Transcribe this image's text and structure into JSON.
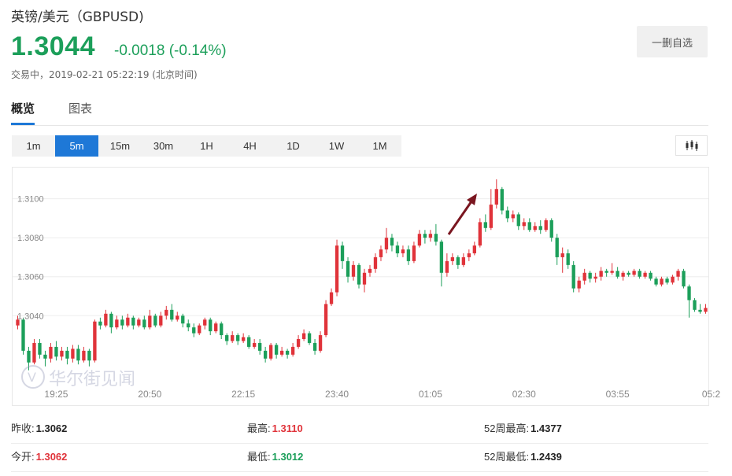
{
  "header": {
    "title": "英镑/美元（GBPUSD)",
    "price": "1.3044",
    "change": "-0.0018 (-0.14%)",
    "timestamp": "交易中，2019-02-21 05:22:19 (北京时间)",
    "watch_button": "一删自选"
  },
  "tabs": [
    {
      "label": "概览",
      "active": true
    },
    {
      "label": "图表",
      "active": false
    }
  ],
  "intervals": [
    {
      "label": "1m",
      "active": false
    },
    {
      "label": "5m",
      "active": true
    },
    {
      "label": "15m",
      "active": false
    },
    {
      "label": "30m",
      "active": false
    },
    {
      "label": "1H",
      "active": false
    },
    {
      "label": "4H",
      "active": false
    },
    {
      "label": "1D",
      "active": false
    },
    {
      "label": "1W",
      "active": false
    },
    {
      "label": "1M",
      "active": false
    }
  ],
  "chart_type_icon": "candlestick-icon",
  "watermark": "华尔街见闻",
  "colors": {
    "up": "#e0333a",
    "down": "#1c9f5a",
    "accent": "#1e78d7",
    "arrow": "#7a1620"
  },
  "chart_data": {
    "type": "candlestick",
    "y_ticks": [
      "1.3040",
      "1.3060",
      "1.3080",
      "1.3100"
    ],
    "y_tick_values": [
      1.304,
      1.306,
      1.308,
      1.31
    ],
    "ylim": [
      1.3007,
      1.3116
    ],
    "x_ticks": [
      "19:25",
      "20:50",
      "22:15",
      "23:40",
      "01:05",
      "02:30",
      "03:55",
      "05:2"
    ],
    "x_tick_index": [
      7,
      24,
      41,
      58,
      75,
      92,
      109,
      126
    ],
    "grid": "horizontal",
    "candles": [
      [
        1.3035,
        1.3038,
        1.3033,
        1.304
      ],
      [
        1.3038,
        1.3022,
        1.302,
        1.3039
      ],
      [
        1.3022,
        1.3016,
        1.3012,
        1.3024
      ],
      [
        1.3016,
        1.3026,
        1.3015,
        1.3028
      ],
      [
        1.3026,
        1.302,
        1.3018,
        1.3028
      ],
      [
        1.302,
        1.3018,
        1.3014,
        1.3022
      ],
      [
        1.3018,
        1.3024,
        1.3016,
        1.3026
      ],
      [
        1.3024,
        1.3019,
        1.3017,
        1.3027
      ],
      [
        1.3019,
        1.3022,
        1.3017,
        1.3024
      ],
      [
        1.3022,
        1.3018,
        1.3015,
        1.3024
      ],
      [
        1.3018,
        1.3023,
        1.3016,
        1.3025
      ],
      [
        1.3023,
        1.3017,
        1.3015,
        1.3025
      ],
      [
        1.3017,
        1.3022,
        1.3016,
        1.3024
      ],
      [
        1.3022,
        1.3017,
        1.3014,
        1.3023
      ],
      [
        1.3017,
        1.3037,
        1.3016,
        1.3038
      ],
      [
        1.3037,
        1.3035,
        1.3033,
        1.3039
      ],
      [
        1.3035,
        1.3041,
        1.3034,
        1.3043
      ],
      [
        1.3041,
        1.3034,
        1.3031,
        1.3042
      ],
      [
        1.3034,
        1.3038,
        1.3033,
        1.304
      ],
      [
        1.3038,
        1.3035,
        1.3033,
        1.304
      ],
      [
        1.3035,
        1.3039,
        1.3034,
        1.3041
      ],
      [
        1.3039,
        1.3035,
        1.3033,
        1.304
      ],
      [
        1.3035,
        1.3038,
        1.3034,
        1.3039
      ],
      [
        1.3038,
        1.3034,
        1.3033,
        1.304
      ],
      [
        1.3034,
        1.304,
        1.3033,
        1.3043
      ],
      [
        1.304,
        1.3035,
        1.3034,
        1.3041
      ],
      [
        1.3035,
        1.304,
        1.3034,
        1.3042
      ],
      [
        1.304,
        1.3043,
        1.3038,
        1.3045
      ],
      [
        1.3043,
        1.3038,
        1.3037,
        1.3046
      ],
      [
        1.3038,
        1.304,
        1.3037,
        1.3042
      ],
      [
        1.304,
        1.3036,
        1.3034,
        1.3041
      ],
      [
        1.3036,
        1.3034,
        1.3032,
        1.3038
      ],
      [
        1.3034,
        1.3031,
        1.3029,
        1.3036
      ],
      [
        1.3031,
        1.3035,
        1.303,
        1.3036
      ],
      [
        1.3035,
        1.3038,
        1.3033,
        1.3039
      ],
      [
        1.3038,
        1.3032,
        1.303,
        1.3039
      ],
      [
        1.3032,
        1.3036,
        1.3031,
        1.3037
      ],
      [
        1.3036,
        1.303,
        1.3028,
        1.3037
      ],
      [
        1.303,
        1.3027,
        1.3025,
        1.3031
      ],
      [
        1.3027,
        1.303,
        1.3026,
        1.3032
      ],
      [
        1.303,
        1.3027,
        1.3025,
        1.3031
      ],
      [
        1.3027,
        1.3029,
        1.3026,
        1.3031
      ],
      [
        1.3029,
        1.3024,
        1.3023,
        1.303
      ],
      [
        1.3024,
        1.3026,
        1.3023,
        1.3028
      ],
      [
        1.3026,
        1.3022,
        1.302,
        1.3028
      ],
      [
        1.3022,
        1.3018,
        1.3016,
        1.3024
      ],
      [
        1.3018,
        1.3025,
        1.3017,
        1.3026
      ],
      [
        1.3025,
        1.302,
        1.3018,
        1.3026
      ],
      [
        1.302,
        1.3022,
        1.3019,
        1.3024
      ],
      [
        1.3022,
        1.302,
        1.3018,
        1.3023
      ],
      [
        1.302,
        1.3024,
        1.3019,
        1.3026
      ],
      [
        1.3024,
        1.3028,
        1.3023,
        1.303
      ],
      [
        1.3028,
        1.3031,
        1.3027,
        1.3033
      ],
      [
        1.3031,
        1.3026,
        1.3025,
        1.3032
      ],
      [
        1.3026,
        1.3022,
        1.302,
        1.3028
      ],
      [
        1.3022,
        1.303,
        1.3021,
        1.3032
      ],
      [
        1.303,
        1.3046,
        1.3029,
        1.3048
      ],
      [
        1.3046,
        1.3052,
        1.3045,
        1.3054
      ],
      [
        1.3052,
        1.3076,
        1.305,
        1.3079
      ],
      [
        1.3076,
        1.3068,
        1.3064,
        1.3078
      ],
      [
        1.3068,
        1.306,
        1.3057,
        1.307
      ],
      [
        1.306,
        1.3066,
        1.3058,
        1.3068
      ],
      [
        1.3066,
        1.3056,
        1.3054,
        1.3067
      ],
      [
        1.3056,
        1.3062,
        1.3052,
        1.3064
      ],
      [
        1.3062,
        1.3064,
        1.306,
        1.3066
      ],
      [
        1.3064,
        1.307,
        1.3062,
        1.3072
      ],
      [
        1.307,
        1.3074,
        1.3068,
        1.3076
      ],
      [
        1.3074,
        1.308,
        1.3072,
        1.3085
      ],
      [
        1.308,
        1.3076,
        1.3073,
        1.3082
      ],
      [
        1.3076,
        1.3072,
        1.307,
        1.3078
      ],
      [
        1.3072,
        1.3074,
        1.307,
        1.3076
      ],
      [
        1.3074,
        1.3068,
        1.3066,
        1.3076
      ],
      [
        1.3068,
        1.3076,
        1.3067,
        1.3078
      ],
      [
        1.3076,
        1.3082,
        1.3075,
        1.3084
      ],
      [
        1.3082,
        1.308,
        1.3077,
        1.3084
      ],
      [
        1.308,
        1.3082,
        1.3078,
        1.3084
      ],
      [
        1.3082,
        1.3078,
        1.3076,
        1.3087
      ],
      [
        1.3078,
        1.3062,
        1.3055,
        1.3079
      ],
      [
        1.3062,
        1.3068,
        1.306,
        1.3072
      ],
      [
        1.3068,
        1.307,
        1.3066,
        1.3072
      ],
      [
        1.307,
        1.3066,
        1.3064,
        1.3071
      ],
      [
        1.3066,
        1.307,
        1.3065,
        1.3072
      ],
      [
        1.307,
        1.3072,
        1.3068,
        1.3074
      ],
      [
        1.3072,
        1.3076,
        1.3071,
        1.3078
      ],
      [
        1.3076,
        1.3088,
        1.3075,
        1.309
      ],
      [
        1.3088,
        1.3085,
        1.3083,
        1.3092
      ],
      [
        1.3085,
        1.3097,
        1.3084,
        1.3105
      ],
      [
        1.3097,
        1.3105,
        1.3095,
        1.311
      ],
      [
        1.3105,
        1.3094,
        1.3092,
        1.3106
      ],
      [
        1.3094,
        1.309,
        1.3088,
        1.3096
      ],
      [
        1.309,
        1.3092,
        1.3088,
        1.3094
      ],
      [
        1.3092,
        1.3086,
        1.3084,
        1.3093
      ],
      [
        1.3086,
        1.3088,
        1.3084,
        1.309
      ],
      [
        1.3088,
        1.3084,
        1.3083,
        1.309
      ],
      [
        1.3084,
        1.3086,
        1.3083,
        1.3088
      ],
      [
        1.3086,
        1.3084,
        1.3082,
        1.3089
      ],
      [
        1.3084,
        1.3089,
        1.3083,
        1.309
      ],
      [
        1.3089,
        1.308,
        1.3078,
        1.309
      ],
      [
        1.308,
        1.307,
        1.3066,
        1.3082
      ],
      [
        1.307,
        1.3072,
        1.3062,
        1.3075
      ],
      [
        1.3072,
        1.3066,
        1.3064,
        1.3074
      ],
      [
        1.3066,
        1.3054,
        1.3052,
        1.3068
      ],
      [
        1.3054,
        1.3058,
        1.3052,
        1.306
      ],
      [
        1.3058,
        1.3062,
        1.3056,
        1.3064
      ],
      [
        1.3062,
        1.3059,
        1.3057,
        1.3063
      ],
      [
        1.3059,
        1.306,
        1.3057,
        1.3062
      ],
      [
        1.306,
        1.3063,
        1.3058,
        1.3065
      ],
      [
        1.3063,
        1.3062,
        1.306,
        1.3064
      ],
      [
        1.3062,
        1.3063,
        1.3061,
        1.3067
      ],
      [
        1.3063,
        1.306,
        1.3059,
        1.3065
      ],
      [
        1.306,
        1.3062,
        1.3058,
        1.3063
      ],
      [
        1.3062,
        1.3061,
        1.306,
        1.3063
      ],
      [
        1.3061,
        1.3063,
        1.306,
        1.3064
      ],
      [
        1.3063,
        1.306,
        1.3059,
        1.3064
      ],
      [
        1.306,
        1.3062,
        1.3059,
        1.3063
      ],
      [
        1.3062,
        1.3059,
        1.3058,
        1.3063
      ],
      [
        1.3059,
        1.3056,
        1.3055,
        1.306
      ],
      [
        1.3056,
        1.3059,
        1.3055,
        1.306
      ],
      [
        1.3059,
        1.3057,
        1.3056,
        1.306
      ],
      [
        1.3057,
        1.306,
        1.3056,
        1.3061
      ],
      [
        1.306,
        1.3063,
        1.3058,
        1.3064
      ],
      [
        1.3063,
        1.3055,
        1.3054,
        1.3064
      ],
      [
        1.3055,
        1.3048,
        1.3039,
        1.3056
      ],
      [
        1.3048,
        1.3043,
        1.3042,
        1.3049
      ],
      [
        1.3043,
        1.3042,
        1.3041,
        1.3046
      ],
      [
        1.3042,
        1.3044,
        1.3041,
        1.3046
      ]
    ]
  },
  "stats": [
    [
      {
        "label": "昨收:",
        "value": "1.3062",
        "tone": "black"
      },
      {
        "label": "最高:",
        "value": "1.3110",
        "tone": "red"
      },
      {
        "label": "52周最高:",
        "value": "1.4377",
        "tone": "black"
      }
    ],
    [
      {
        "label": "今开:",
        "value": "1.3062",
        "tone": "red"
      },
      {
        "label": "最低:",
        "value": "1.3012",
        "tone": "green"
      },
      {
        "label": "52周最低:",
        "value": "1.2439",
        "tone": "black"
      }
    ]
  ]
}
